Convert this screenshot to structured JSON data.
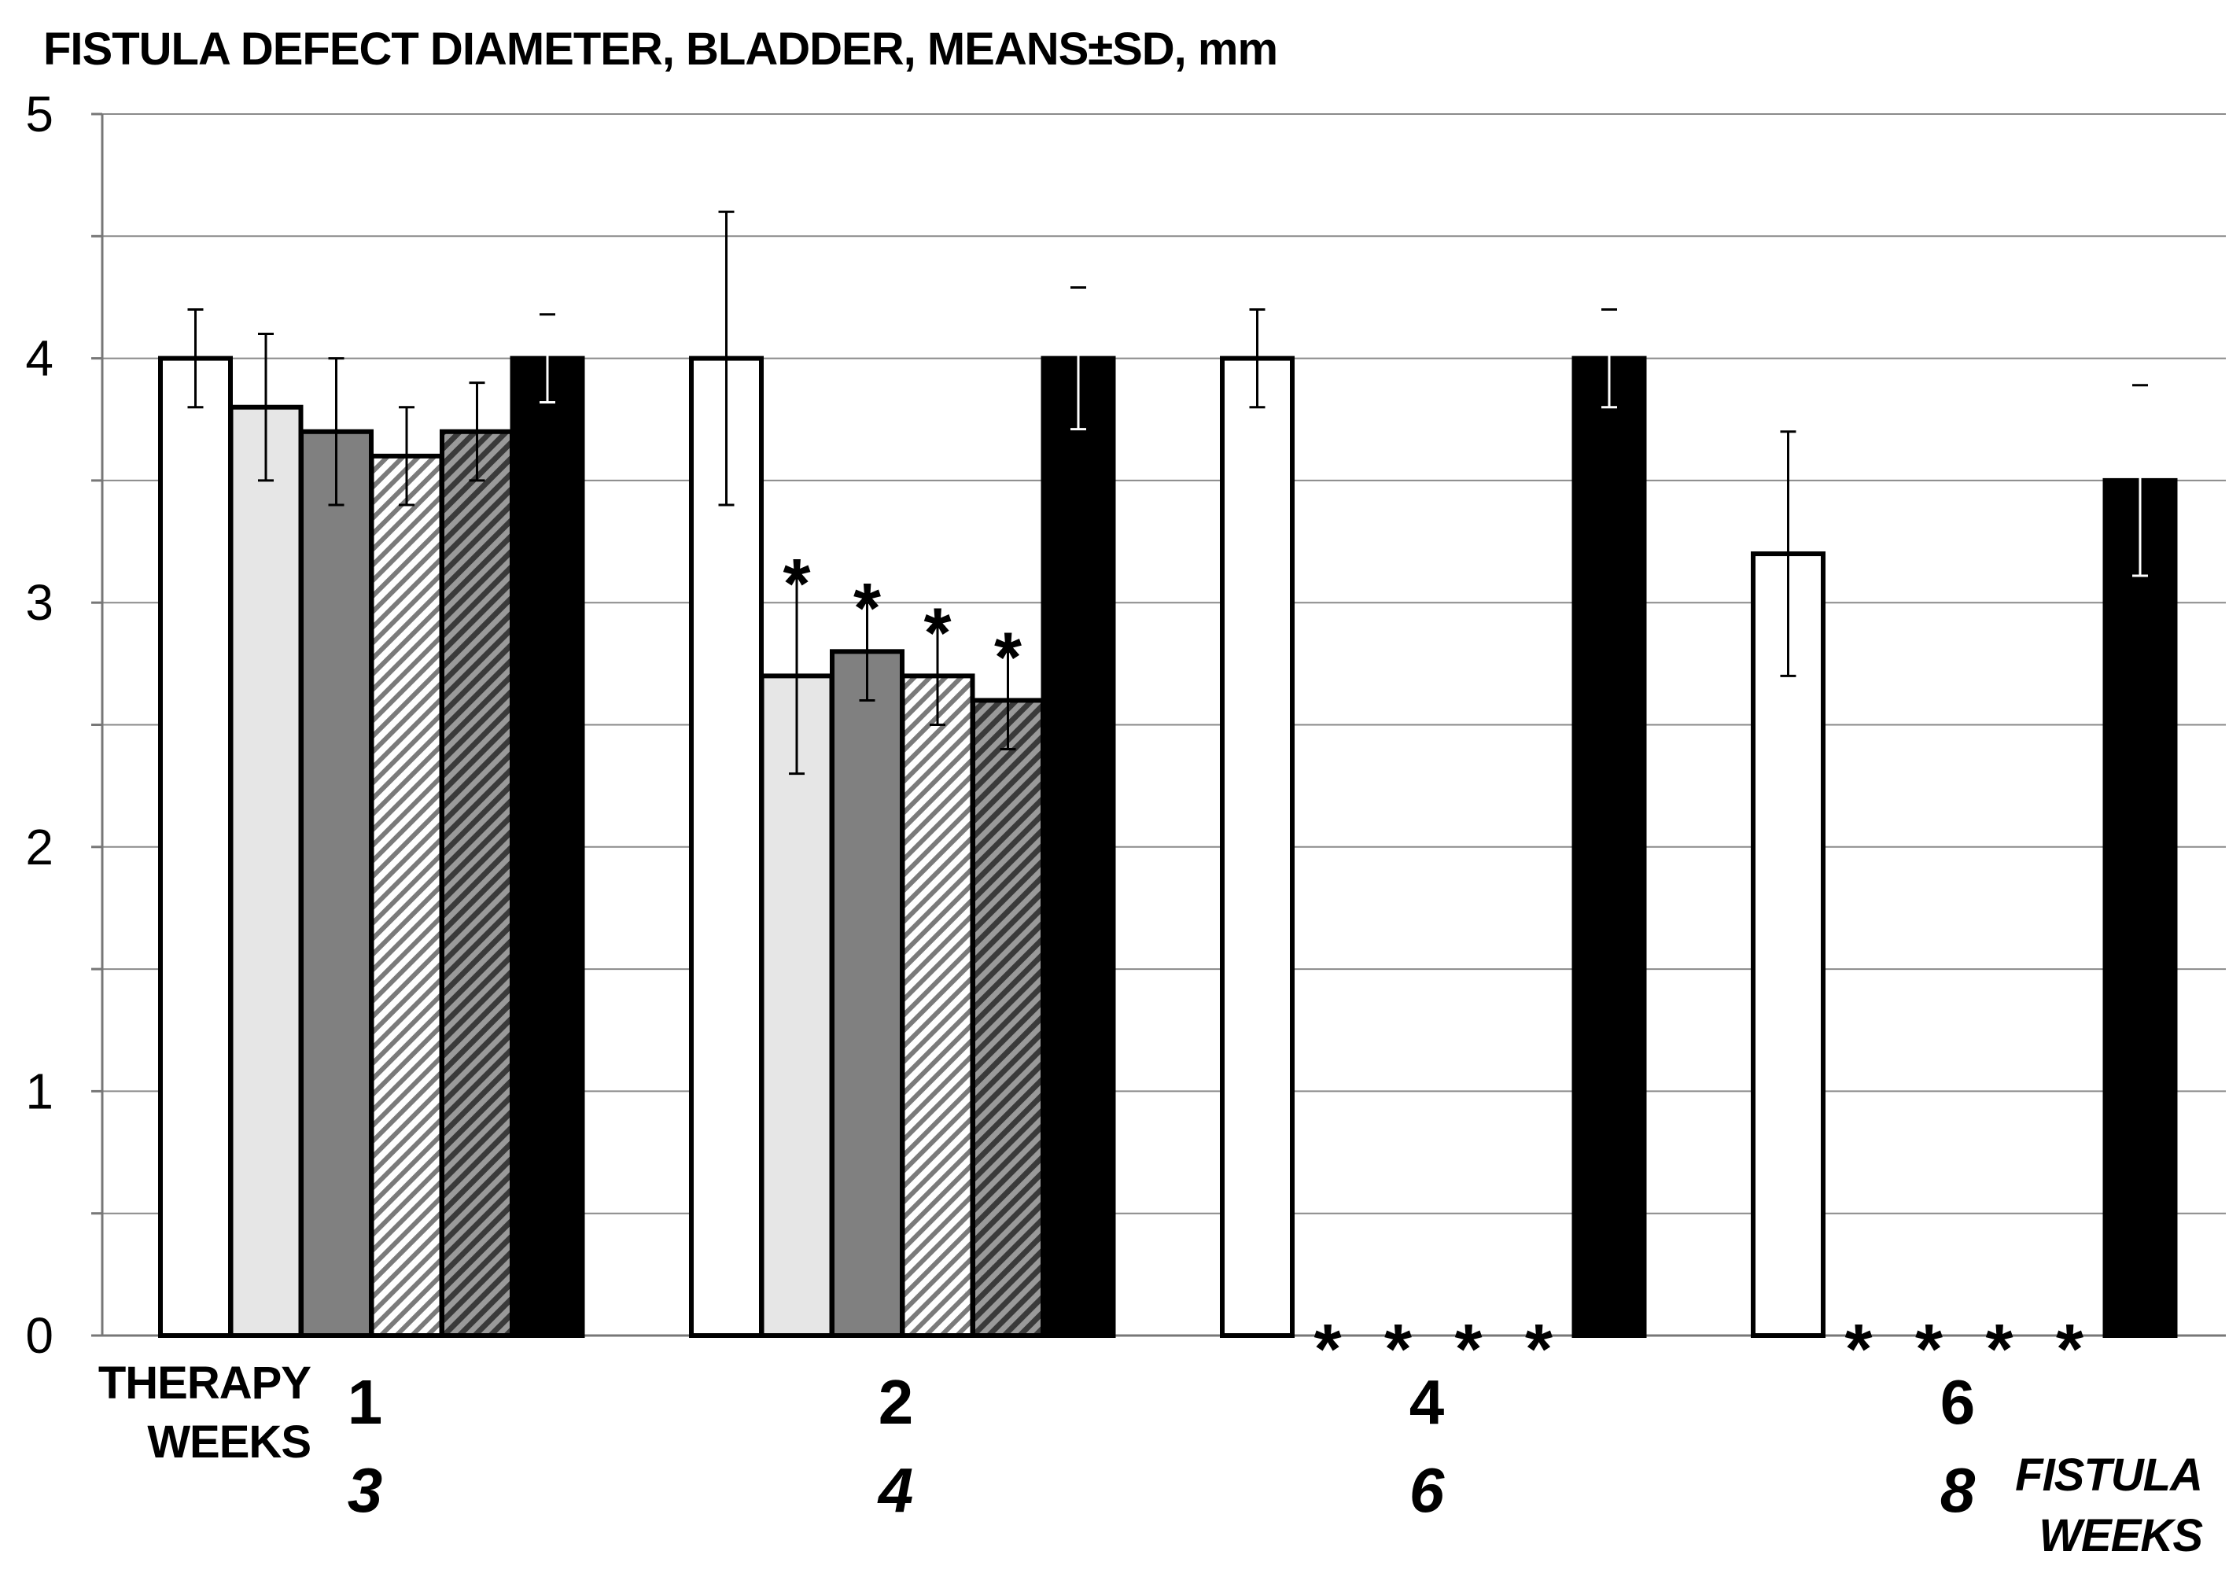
{
  "chart_data": {
    "type": "bar",
    "title": "FISTULA DEFECT DIAMETER, BLADDER, MEANS±SD, mm",
    "ylim": [
      0,
      5
    ],
    "y_ticks": [
      "0",
      "1",
      "2",
      "3",
      "4",
      "5"
    ],
    "grid": true,
    "x_row1_label": [
      "THERAPY",
      "WEEKS"
    ],
    "x_row2_label": [
      "FISTULA",
      "WEEKS"
    ],
    "categories": [
      {
        "therapy_weeks": "1",
        "fistula_weeks": "3"
      },
      {
        "therapy_weeks": "2",
        "fistula_weeks": "4"
      },
      {
        "therapy_weeks": "4",
        "fistula_weeks": "6"
      },
      {
        "therapy_weeks": "6",
        "fistula_weeks": "8"
      }
    ],
    "series": [
      {
        "fill": "#ffffff",
        "pattern": "solid",
        "values": [
          4.0,
          4.0,
          4.0,
          3.2
        ],
        "sd": [
          0.2,
          0.6,
          0.2,
          0.5
        ]
      },
      {
        "fill": "#e6e6e6",
        "pattern": "solid",
        "values": [
          3.8,
          2.7,
          0,
          0
        ],
        "sd": [
          0.3,
          0.4,
          0,
          0
        ]
      },
      {
        "fill": "#808080",
        "pattern": "solid",
        "values": [
          3.7,
          2.8,
          0,
          0
        ],
        "sd": [
          0.3,
          0.2,
          0,
          0
        ]
      },
      {
        "fill": "#ffffff",
        "pattern": "hatch-light",
        "values": [
          3.6,
          2.7,
          0,
          0
        ],
        "sd": [
          0.2,
          0.2,
          0,
          0
        ]
      },
      {
        "fill": "#666666",
        "pattern": "hatch-dark",
        "values": [
          3.7,
          2.6,
          0,
          0
        ],
        "sd": [
          0.2,
          0.2,
          0,
          0
        ]
      },
      {
        "fill": "#000000",
        "pattern": "solid",
        "values": [
          4.0,
          4.0,
          4.0,
          3.5
        ],
        "sd": [
          0.18,
          0.29,
          0.2,
          0.39
        ]
      }
    ],
    "significance_marker": "*",
    "significance": [
      [
        false,
        false,
        false,
        false
      ],
      [
        false,
        true,
        true,
        true
      ],
      [
        false,
        true,
        true,
        true
      ],
      [
        false,
        true,
        true,
        true
      ],
      [
        false,
        true,
        true,
        true
      ],
      [
        false,
        false,
        false,
        false
      ]
    ]
  }
}
